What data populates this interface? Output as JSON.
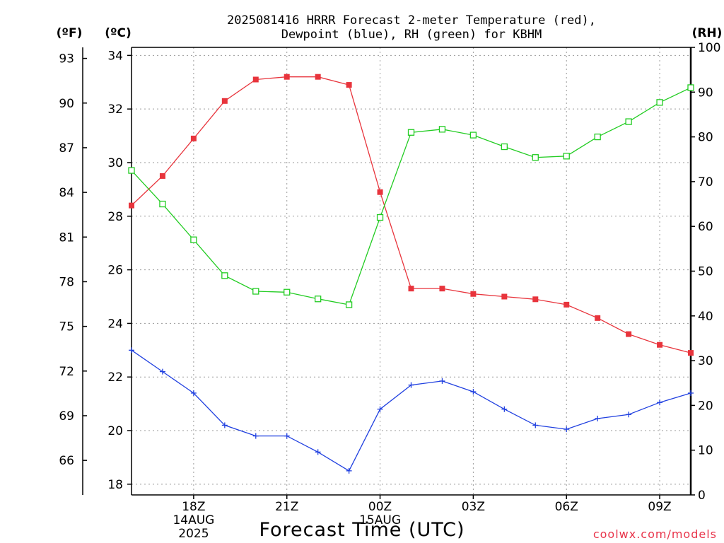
{
  "chart_data": {
    "type": "line",
    "title_lines": [
      "2025081416 HRRR Forecast 2-meter Temperature (red),",
      "Dewpoint (blue), RH (green) for KBHM"
    ],
    "xlabel": "Forecast Time (UTC)",
    "credit": "coolwx.com/models",
    "units": {
      "fahrenheit": "(ºF)",
      "celsius": "(ºC)",
      "rh": "(RH)"
    },
    "x_hours": [
      16,
      17,
      18,
      19,
      20,
      21,
      22,
      23,
      24,
      25,
      26,
      27,
      28,
      29,
      30,
      31,
      32,
      33,
      34
    ],
    "xlim": [
      16,
      34
    ],
    "x_ticks": [
      {
        "hour": 18,
        "lines": [
          "18Z",
          "14AUG",
          "2025"
        ]
      },
      {
        "hour": 21,
        "lines": [
          "21Z"
        ]
      },
      {
        "hour": 24,
        "lines": [
          "00Z",
          "15AUG"
        ]
      },
      {
        "hour": 27,
        "lines": [
          "03Z"
        ]
      },
      {
        "hour": 30,
        "lines": [
          "06Z"
        ]
      },
      {
        "hour": 33,
        "lines": [
          "09Z"
        ]
      }
    ],
    "celsius_axis": {
      "ylim": [
        17.6,
        34.3
      ],
      "ticks": [
        18,
        20,
        22,
        24,
        26,
        28,
        30,
        32,
        34
      ]
    },
    "fahrenheit_axis": {
      "ticks": [
        66,
        69,
        72,
        75,
        78,
        81,
        84,
        87,
        90,
        93
      ]
    },
    "rh_axis": {
      "ylim": [
        0,
        100
      ],
      "ticks": [
        0,
        10,
        20,
        30,
        40,
        50,
        60,
        70,
        80,
        90,
        100
      ]
    },
    "series": [
      {
        "key": "temperature",
        "color": "#e8343c",
        "marker": "filled-square",
        "axis": "celsius",
        "values": [
          28.4,
          29.5,
          30.9,
          32.3,
          33.1,
          33.2,
          33.2,
          32.9,
          28.9,
          25.3,
          25.3,
          25.1,
          25.0,
          24.9,
          24.7,
          24.2,
          23.6,
          23.2,
          22.9
        ]
      },
      {
        "key": "dewpoint",
        "color": "#2040e0",
        "marker": "plus",
        "axis": "celsius",
        "values": [
          23.0,
          22.2,
          21.4,
          20.2,
          19.8,
          19.8,
          19.2,
          18.5,
          20.8,
          21.7,
          21.85,
          21.45,
          20.8,
          20.2,
          20.05,
          20.45,
          20.6,
          21.05,
          21.4
        ]
      },
      {
        "key": "rh",
        "color": "#22cc22",
        "marker": "open-square",
        "axis": "rh",
        "values": [
          72.5,
          65,
          57,
          49,
          45.5,
          45.3,
          43.8,
          42.5,
          62,
          81,
          81.7,
          80.4,
          77.8,
          75.4,
          75.7,
          80,
          83.4,
          87.7,
          91
        ]
      }
    ]
  }
}
